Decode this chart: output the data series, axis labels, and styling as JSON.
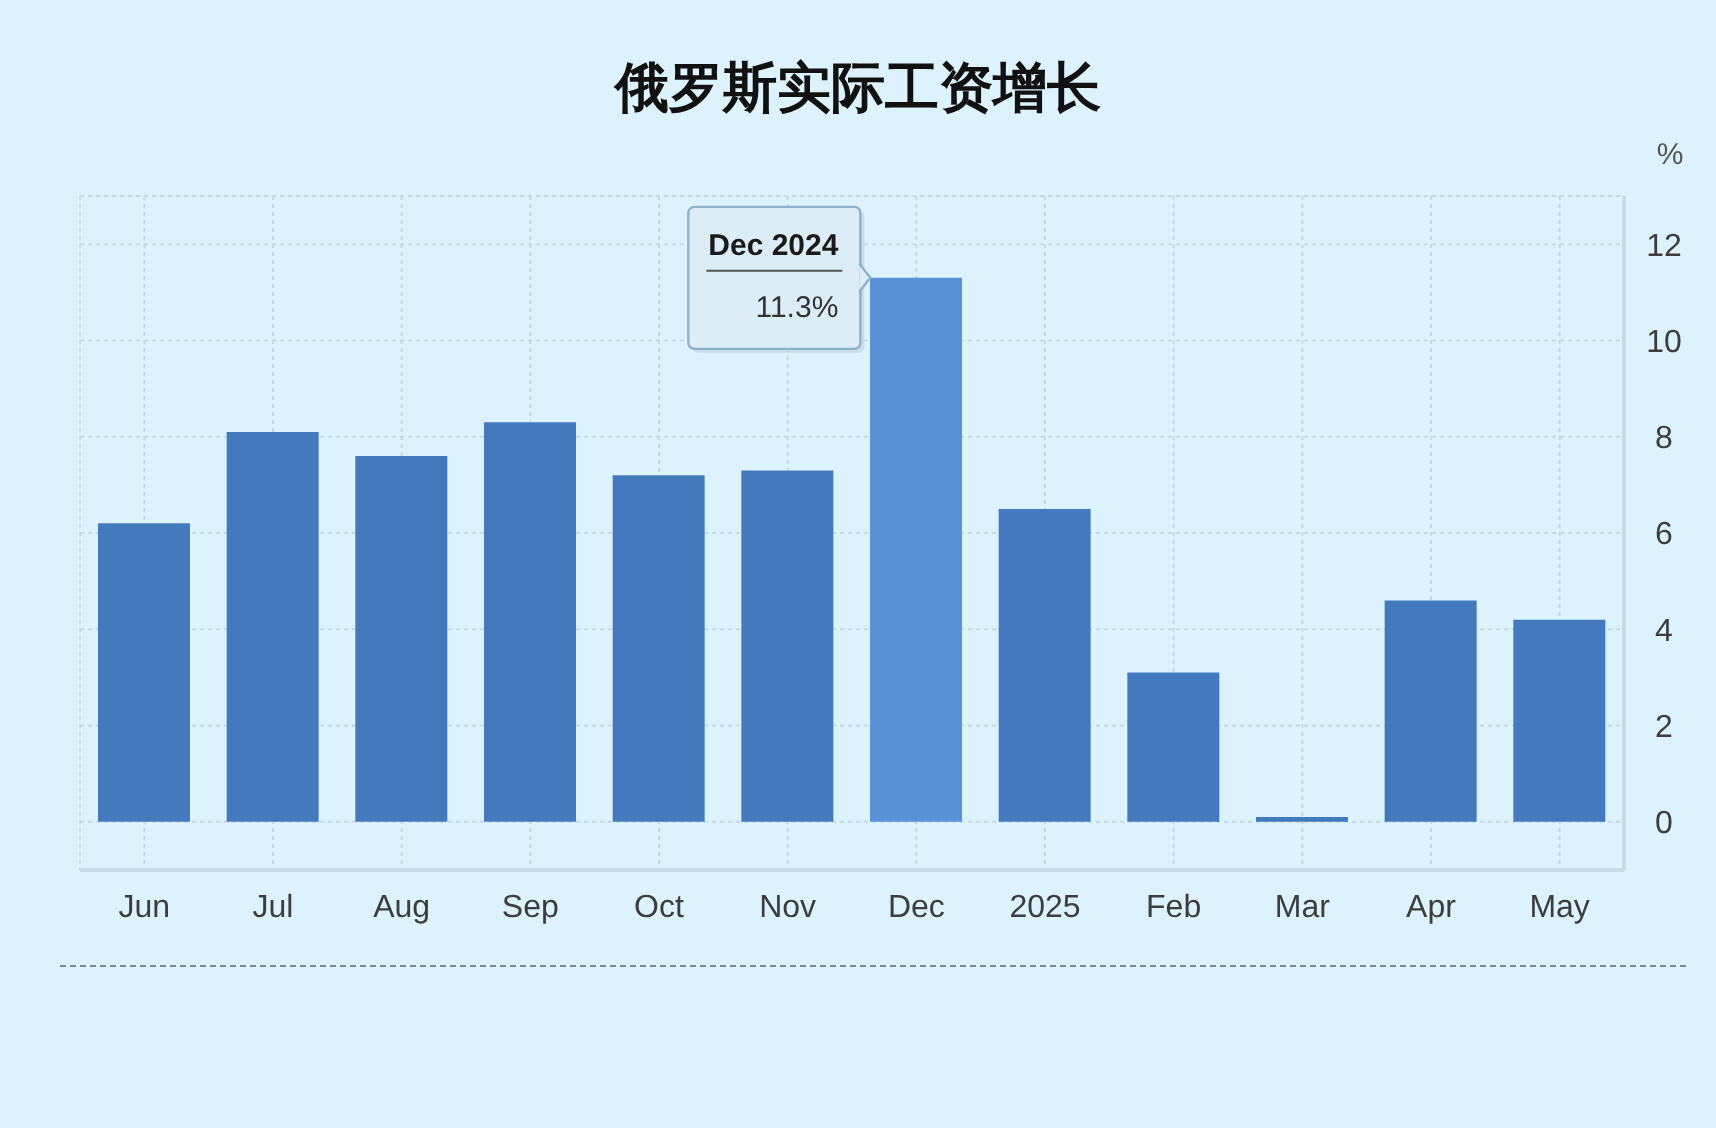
{
  "chart_data": {
    "type": "bar",
    "title": "俄罗斯实际工资增长",
    "ylabel": "%",
    "categories": [
      "Jun",
      "Jul",
      "Aug",
      "Sep",
      "Oct",
      "Nov",
      "Dec",
      "2025",
      "Feb",
      "Mar",
      "Apr",
      "May"
    ],
    "values": [
      6.2,
      8.1,
      7.6,
      8.3,
      7.2,
      7.3,
      11.3,
      6.5,
      3.1,
      0.1,
      4.6,
      4.2
    ],
    "colors": [
      "#447abd",
      "#447abd",
      "#447abd",
      "#447abd",
      "#447abd",
      "#447abd",
      "#5891d6",
      "#447abd",
      "#447abd",
      "#447abd",
      "#447abd",
      "#447abd"
    ],
    "ylim": [
      -1,
      13
    ],
    "yticks": [
      0,
      2,
      4,
      6,
      8,
      10,
      12
    ],
    "grid": true,
    "annotations": [
      {
        "text": "Dec 2024",
        "x": "Dec",
        "y": 11.3
      },
      {
        "text": "11.3%",
        "x": "Dec",
        "y": 11.3
      }
    ]
  }
}
